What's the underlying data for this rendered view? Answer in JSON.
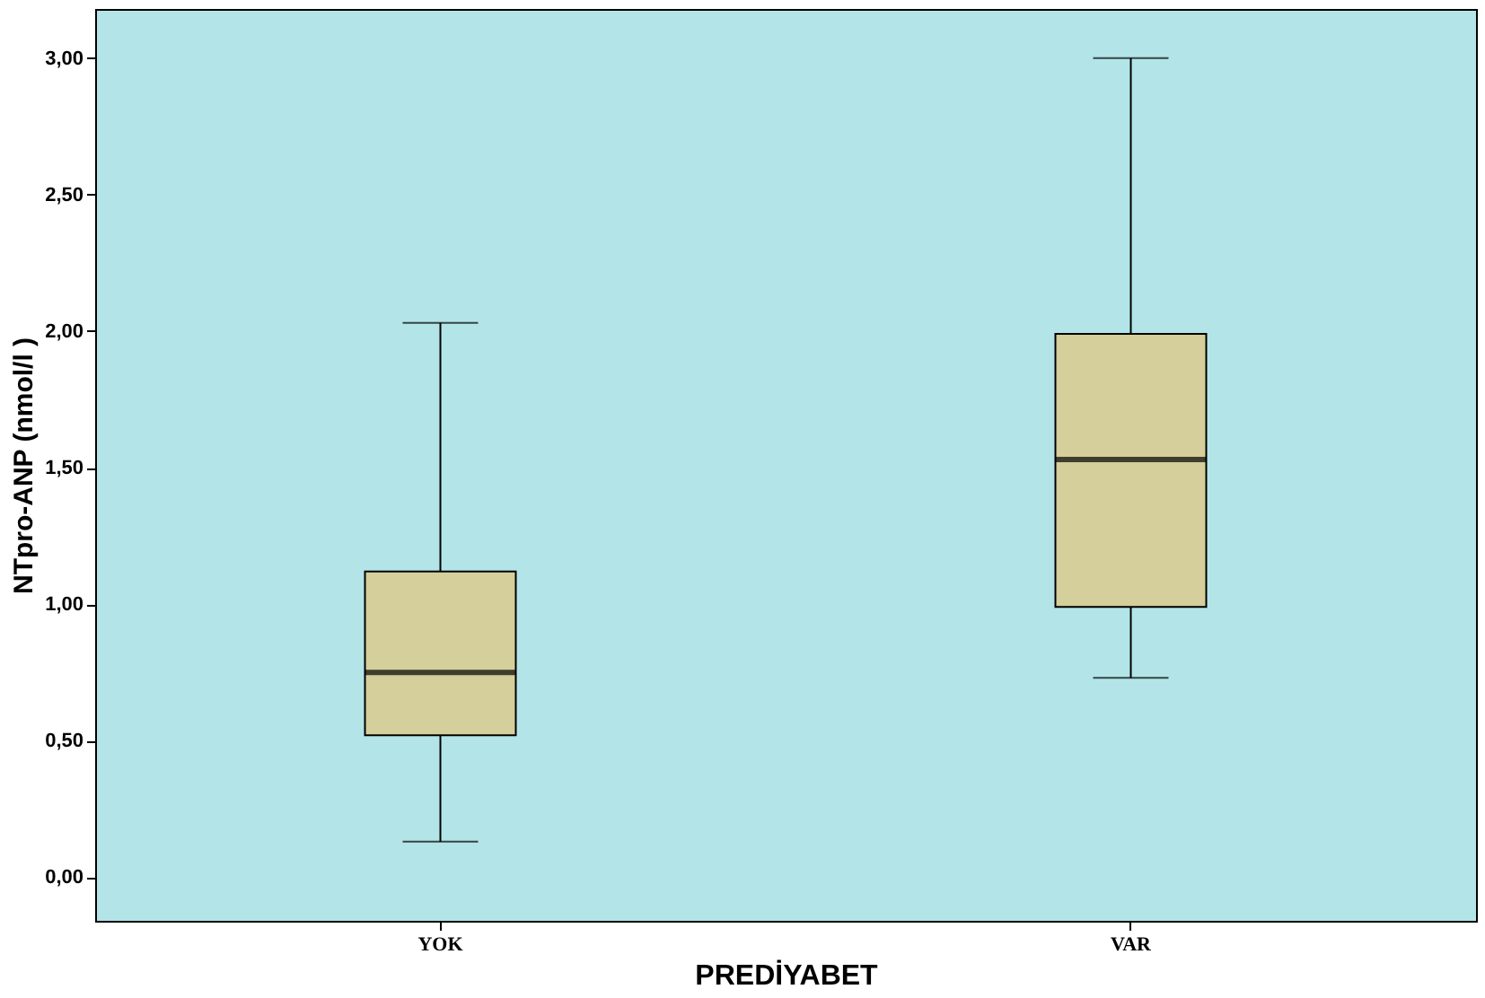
{
  "chart_data": {
    "type": "box",
    "xlabel": "PREDİYABET",
    "ylabel": "NTpro-ANP (nmol/l )",
    "categories": [
      "YOK",
      "VAR"
    ],
    "boxes": [
      {
        "low": 0.13,
        "q1": 0.52,
        "median": 0.75,
        "q3": 1.12,
        "high": 2.03
      },
      {
        "low": 0.73,
        "q1": 0.99,
        "median": 1.53,
        "q3": 1.99,
        "high": 3.0
      }
    ],
    "color": "#d4cf9b",
    "ylim": [
      -0.16,
      3.18
    ],
    "yticks": [
      {
        "value": 0,
        "label": "0,00"
      },
      {
        "value": 0.5,
        "label": "0,50"
      },
      {
        "value": 1,
        "label": "1,00"
      },
      {
        "value": 1.5,
        "label": "1,50"
      },
      {
        "value": 2,
        "label": "2,00"
      },
      {
        "value": 2.5,
        "label": "2,50"
      },
      {
        "value": 3,
        "label": "3,00"
      }
    ],
    "grid": false
  }
}
